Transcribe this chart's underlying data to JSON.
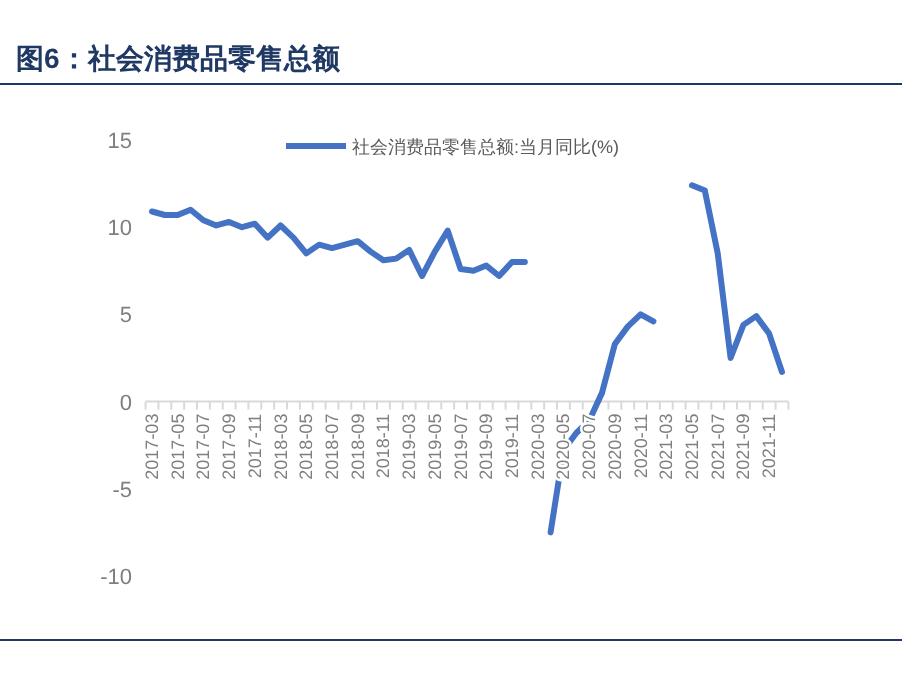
{
  "chart_data": {
    "type": "line",
    "title": "图6：社会消费品零售总额",
    "categories": [
      "2017-03",
      null,
      "2017-05",
      null,
      "2017-07",
      null,
      "2017-09",
      null,
      "2017-11",
      null,
      "2018-03",
      null,
      "2018-05",
      null,
      "2018-07",
      null,
      "2018-09",
      null,
      "2018-11",
      null,
      "2019-03",
      null,
      "2019-05",
      null,
      "2019-07",
      null,
      "2019-09",
      null,
      "2019-11",
      null,
      "2020-03",
      null,
      "2020-05",
      null,
      "2020-07",
      null,
      "2020-09",
      null,
      "2020-11",
      null,
      "2021-03",
      null,
      "2021-05",
      null,
      "2021-07",
      null,
      "2021-09",
      null,
      "2021-11",
      null
    ],
    "series": [
      {
        "name": "社会消费品零售总额:当月同比(%)",
        "color": "#4472c4",
        "values": [
          10.9,
          10.7,
          10.7,
          11.0,
          10.4,
          10.1,
          10.3,
          10.0,
          10.2,
          9.4,
          10.1,
          9.4,
          8.5,
          9.0,
          8.8,
          9.0,
          9.2,
          8.6,
          8.1,
          8.2,
          8.7,
          7.2,
          8.6,
          9.8,
          7.6,
          7.5,
          7.8,
          7.2,
          8.0,
          8.0,
          null,
          -7.5,
          -2.8,
          -1.8,
          -1.1,
          0.5,
          3.3,
          4.3,
          5.0,
          4.6,
          null,
          null,
          12.4,
          12.1,
          8.5,
          2.5,
          4.4,
          4.9,
          3.9,
          1.7
        ]
      }
    ],
    "ylim": [
      -10,
      15
    ],
    "yticks": [
      -10,
      -5,
      0,
      5,
      10,
      15
    ],
    "grid": false,
    "legend": "top",
    "marker": "none",
    "line_style": "solid"
  }
}
